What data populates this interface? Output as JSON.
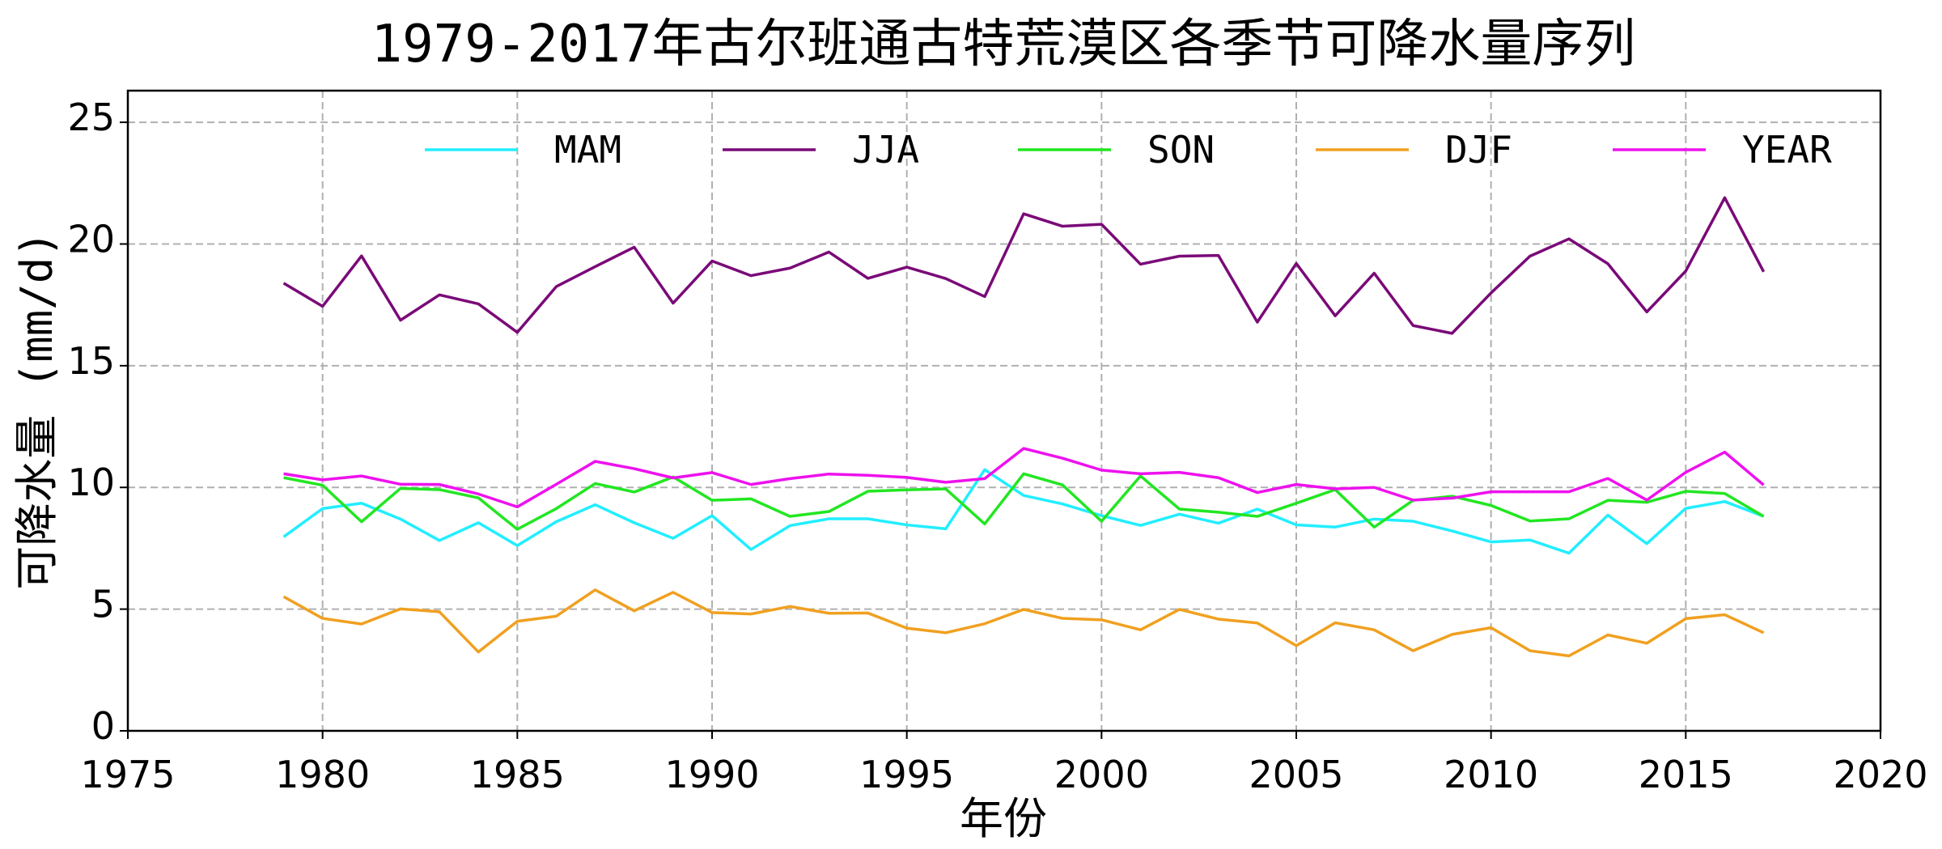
{
  "chart_data": {
    "type": "line",
    "title": "1979-2017年古尔班通古特荒漠区各季节可降水量序列",
    "xlabel": "年份",
    "ylabel": "可降水量 (mm/d)",
    "xlim": [
      1975,
      2020
    ],
    "ylim": [
      0,
      26.3
    ],
    "xticks": [
      "1975",
      "1980",
      "1985",
      "1990",
      "1995",
      "2000",
      "2005",
      "2010",
      "2015",
      "2020"
    ],
    "yticks": [
      "0",
      "5",
      "10",
      "15",
      "20",
      "25"
    ],
    "grid": true,
    "legend_placement": "top (inside, horizontal)",
    "x": [
      1979,
      1980,
      1981,
      1982,
      1983,
      1984,
      1985,
      1986,
      1987,
      1988,
      1989,
      1990,
      1991,
      1992,
      1993,
      1994,
      1995,
      1996,
      1997,
      1998,
      1999,
      2000,
      2001,
      2002,
      2003,
      2004,
      2005,
      2006,
      2007,
      2008,
      2009,
      2010,
      2011,
      2012,
      2013,
      2014,
      2015,
      2016,
      2017
    ],
    "series": [
      {
        "name": "MAM",
        "color": "#22eeff",
        "values": [
          7.97,
          9.13,
          9.35,
          8.7,
          7.82,
          8.55,
          7.61,
          8.59,
          9.29,
          8.55,
          7.91,
          8.84,
          7.45,
          8.43,
          8.71,
          8.71,
          8.46,
          8.3,
          10.73,
          9.67,
          9.32,
          8.84,
          8.44,
          8.9,
          8.53,
          9.11,
          8.46,
          8.37,
          8.7,
          8.61,
          8.21,
          7.76,
          7.84,
          7.3,
          8.86,
          7.69,
          9.14,
          9.42,
          8.81
        ]
      },
      {
        "name": "JJA",
        "color": "#7a0a78",
        "values": [
          18.39,
          17.44,
          19.51,
          16.87,
          17.91,
          17.54,
          16.37,
          18.25,
          19.07,
          19.87,
          17.57,
          19.3,
          18.7,
          19.01,
          19.67,
          18.59,
          19.05,
          18.58,
          17.84,
          21.24,
          20.73,
          20.81,
          19.17,
          19.5,
          19.53,
          16.79,
          19.2,
          17.05,
          18.8,
          16.65,
          16.33,
          17.99,
          19.5,
          20.21,
          19.19,
          17.21,
          18.89,
          21.9,
          18.86
        ]
      },
      {
        "name": "SON",
        "color": "#22e622",
        "values": [
          10.4,
          10.09,
          8.59,
          9.96,
          9.91,
          9.57,
          8.28,
          9.13,
          10.16,
          9.81,
          10.43,
          9.47,
          9.53,
          8.81,
          9.01,
          9.84,
          9.9,
          9.94,
          8.5,
          10.56,
          10.1,
          8.61,
          10.47,
          9.11,
          8.98,
          8.81,
          9.35,
          9.91,
          8.37,
          9.47,
          9.64,
          9.26,
          8.62,
          8.71,
          9.47,
          9.39,
          9.84,
          9.75,
          8.81
        ]
      },
      {
        "name": "DJF",
        "color": "#f0a020",
        "values": [
          5.51,
          4.62,
          4.39,
          5.01,
          4.89,
          3.24,
          4.5,
          4.71,
          5.79,
          4.93,
          5.69,
          4.86,
          4.8,
          5.11,
          4.83,
          4.84,
          4.22,
          4.03,
          4.4,
          4.99,
          4.62,
          4.56,
          4.15,
          4.99,
          4.59,
          4.43,
          3.5,
          4.44,
          4.15,
          3.29,
          3.96,
          4.24,
          3.29,
          3.08,
          3.94,
          3.6,
          4.61,
          4.77,
          4.03
        ]
      },
      {
        "name": "YEAR",
        "color": "#ee11ee",
        "values": [
          10.56,
          10.31,
          10.47,
          10.13,
          10.12,
          9.73,
          9.2,
          10.13,
          11.07,
          10.77,
          10.39,
          10.61,
          10.12,
          10.36,
          10.55,
          10.5,
          10.41,
          10.21,
          10.36,
          11.6,
          11.2,
          10.71,
          10.56,
          10.62,
          10.4,
          9.79,
          10.12,
          9.94,
          10.0,
          9.48,
          9.56,
          9.82,
          9.82,
          9.82,
          10.37,
          9.48,
          10.62,
          11.45,
          10.1
        ]
      }
    ]
  }
}
